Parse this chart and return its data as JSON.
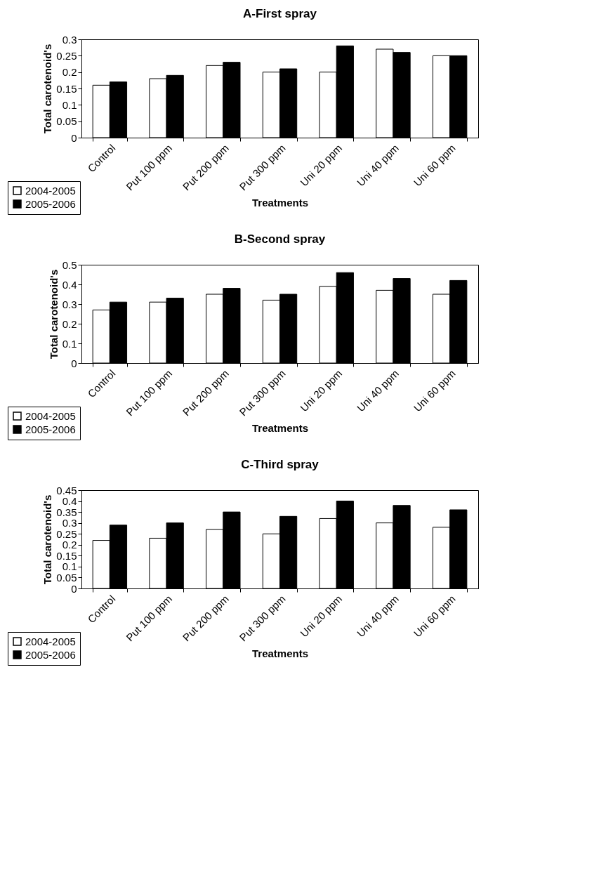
{
  "chart_data": [
    {
      "type": "bar",
      "title": "A-First spray",
      "xlabel": "Treatments",
      "ylabel": "Total carotenoid's",
      "categories": [
        "Control",
        "Put 100 ppm",
        "Put 200 ppm",
        "Put 300 ppm",
        "Uni 20 ppm",
        "Uni 40 ppm",
        "Uni 60 ppm"
      ],
      "series": [
        {
          "name": "2004-2005",
          "color": "#ffffff",
          "values": [
            0.16,
            0.18,
            0.22,
            0.2,
            0.2,
            0.27,
            0.25
          ]
        },
        {
          "name": "2005-2006",
          "color": "#000000",
          "values": [
            0.17,
            0.19,
            0.23,
            0.21,
            0.28,
            0.26,
            0.25
          ]
        }
      ],
      "ylim": [
        0,
        0.3
      ],
      "yticks": [
        0,
        0.05,
        0.1,
        0.15,
        0.2,
        0.25,
        0.3
      ],
      "grid": false,
      "legend": "bottom left"
    },
    {
      "type": "bar",
      "title": "B-Second spray",
      "xlabel": "Treatments",
      "ylabel": "Total carotenoid's",
      "categories": [
        "Control",
        "Put 100 ppm",
        "Put 200 ppm",
        "Put 300 ppm",
        "Uni 20 ppm",
        "Uni 40 ppm",
        "Uni 60 ppm"
      ],
      "series": [
        {
          "name": "2004-2005",
          "color": "#ffffff",
          "values": [
            0.27,
            0.31,
            0.35,
            0.32,
            0.39,
            0.37,
            0.35
          ]
        },
        {
          "name": "2005-2006",
          "color": "#000000",
          "values": [
            0.31,
            0.33,
            0.38,
            0.35,
            0.46,
            0.43,
            0.42
          ]
        }
      ],
      "ylim": [
        0,
        0.5
      ],
      "yticks": [
        0,
        0.1,
        0.2,
        0.3,
        0.4,
        0.5
      ],
      "grid": false,
      "legend": "bottom left"
    },
    {
      "type": "bar",
      "title": "C-Third spray",
      "xlabel": "Treatments",
      "ylabel": "Total carotenoid's",
      "categories": [
        "Control",
        "Put 100 ppm",
        "Put 200 ppm",
        "Put 300 ppm",
        "Uni 20 ppm",
        "Uni 40 ppm",
        "Uni 60 ppm"
      ],
      "series": [
        {
          "name": "2004-2005",
          "color": "#ffffff",
          "values": [
            0.22,
            0.23,
            0.27,
            0.25,
            0.32,
            0.3,
            0.28
          ]
        },
        {
          "name": "2005-2006",
          "color": "#000000",
          "values": [
            0.29,
            0.3,
            0.35,
            0.33,
            0.4,
            0.38,
            0.36
          ]
        }
      ],
      "ylim": [
        0,
        0.45
      ],
      "yticks": [
        0,
        0.05,
        0.1,
        0.15,
        0.2,
        0.25,
        0.3,
        0.35,
        0.4,
        0.45
      ],
      "grid": false,
      "legend": "bottom left"
    }
  ]
}
